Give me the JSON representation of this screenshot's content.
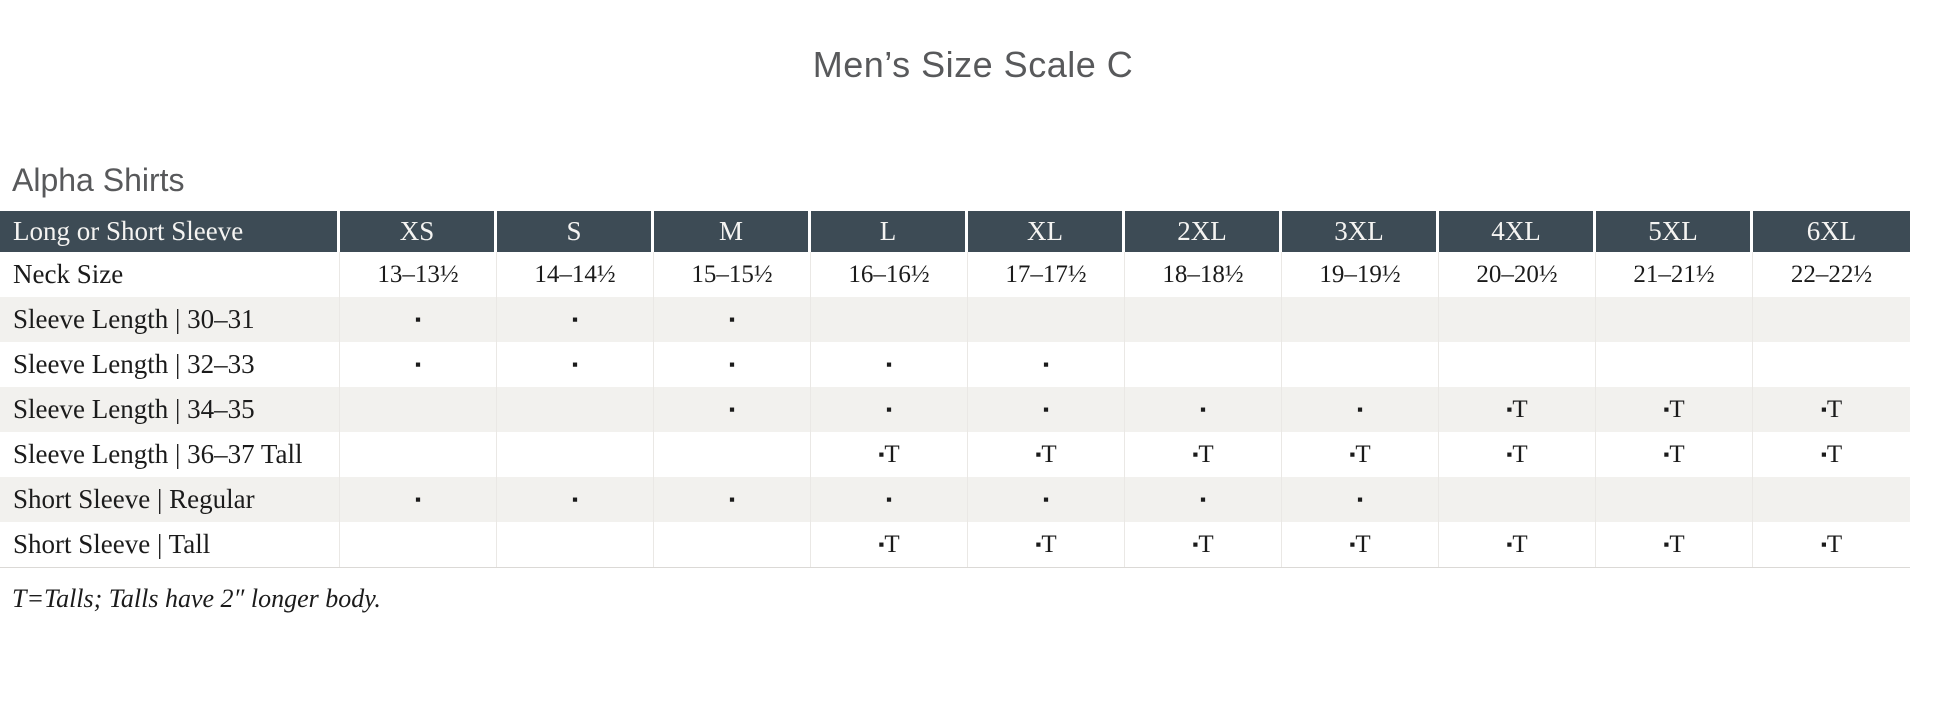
{
  "page": {
    "title": "Men’s Size Scale C",
    "section_heading": "Alpha Shirts",
    "footnote": "T=Talls; Talls have 2″ longer body."
  },
  "legend": {
    "available_symbol": "▪",
    "available_tall_symbol": "▪T"
  },
  "colors": {
    "header_background": "#3d4b55",
    "header_text": "#f5f4f2",
    "stripe_background": "#f2f1ee",
    "heading_text": "#58595b",
    "body_text": "#1b1b1b"
  },
  "table": {
    "columns": [
      "Long or Short Sleeve",
      "XS",
      "S",
      "M",
      "L",
      "XL",
      "2XL",
      "3XL",
      "4XL",
      "5XL",
      "6XL"
    ],
    "rows": [
      {
        "label": "Neck Size",
        "striped": false,
        "cells": [
          "13–13½",
          "14–14½",
          "15–15½",
          "16–16½",
          "17–17½",
          "18–18½",
          "19–19½",
          "20–20½",
          "21–21½",
          "22–22½"
        ]
      },
      {
        "label": "Sleeve Length | 30–31",
        "striped": true,
        "cells": [
          "▪",
          "▪",
          "▪",
          "",
          "",
          "",
          "",
          "",
          "",
          ""
        ]
      },
      {
        "label": "Sleeve Length | 32–33",
        "striped": false,
        "cells": [
          "▪",
          "▪",
          "▪",
          "▪",
          "▪",
          "",
          "",
          "",
          "",
          ""
        ]
      },
      {
        "label": "Sleeve Length | 34–35",
        "striped": true,
        "cells": [
          "",
          "",
          "▪",
          "▪",
          "▪",
          "▪",
          "▪",
          "▪T",
          "▪T",
          "▪T"
        ]
      },
      {
        "label": "Sleeve Length | 36–37 Tall",
        "striped": false,
        "cells": [
          "",
          "",
          "",
          "▪T",
          "▪T",
          "▪T",
          "▪T",
          "▪T",
          "▪T",
          "▪T"
        ]
      },
      {
        "label": "Short Sleeve | Regular",
        "striped": true,
        "cells": [
          "▪",
          "▪",
          "▪",
          "▪",
          "▪",
          "▪",
          "▪",
          "",
          "",
          ""
        ]
      },
      {
        "label": "Short Sleeve | Tall",
        "striped": false,
        "cells": [
          "",
          "",
          "",
          "▪T",
          "▪T",
          "▪T",
          "▪T",
          "▪T",
          "▪T",
          "▪T"
        ]
      }
    ]
  }
}
